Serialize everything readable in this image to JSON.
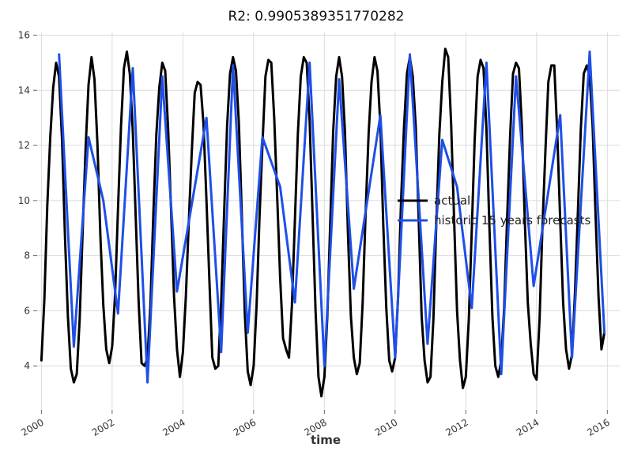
{
  "chart_data": {
    "type": "line",
    "title": "R2: 0.9905389351770282",
    "xlabel": "time",
    "ylabel": "",
    "xlim": [
      1999.88,
      2016.35
    ],
    "ylim": [
      2.4,
      16.1
    ],
    "x_ticks": [
      2000,
      2002,
      2004,
      2006,
      2008,
      2010,
      2012,
      2014,
      2016
    ],
    "x_tick_labels": [
      "2000",
      "2002",
      "2004",
      "2006",
      "2008",
      "2010",
      "2012",
      "2014",
      "2016"
    ],
    "y_ticks": [
      4,
      6,
      8,
      10,
      12,
      14,
      16
    ],
    "y_tick_labels": [
      "4",
      "6",
      "8",
      "10",
      "12",
      "14",
      "16"
    ],
    "grid": true,
    "legend_position": "center-right",
    "series": [
      {
        "name": "actual",
        "color": "#000000",
        "x": [
          2000.0,
          2000.083,
          2000.167,
          2000.25,
          2000.333,
          2000.417,
          2000.5,
          2000.583,
          2000.667,
          2000.75,
          2000.833,
          2000.917,
          2001.0,
          2001.083,
          2001.167,
          2001.25,
          2001.333,
          2001.417,
          2001.5,
          2001.583,
          2001.667,
          2001.75,
          2001.833,
          2001.917,
          2002.0,
          2002.083,
          2002.167,
          2002.25,
          2002.333,
          2002.417,
          2002.5,
          2002.583,
          2002.667,
          2002.75,
          2002.833,
          2002.917,
          2003.0,
          2003.083,
          2003.167,
          2003.25,
          2003.333,
          2003.417,
          2003.5,
          2003.583,
          2003.667,
          2003.75,
          2003.833,
          2003.917,
          2004.0,
          2004.083,
          2004.167,
          2004.25,
          2004.333,
          2004.417,
          2004.5,
          2004.583,
          2004.667,
          2004.75,
          2004.833,
          2004.917,
          2005.0,
          2005.083,
          2005.167,
          2005.25,
          2005.333,
          2005.417,
          2005.5,
          2005.583,
          2005.667,
          2005.75,
          2005.833,
          2005.917,
          2006.0,
          2006.083,
          2006.167,
          2006.25,
          2006.333,
          2006.417,
          2006.5,
          2006.583,
          2006.667,
          2006.75,
          2006.833,
          2006.917,
          2007.0,
          2007.083,
          2007.167,
          2007.25,
          2007.333,
          2007.417,
          2007.5,
          2007.583,
          2007.667,
          2007.75,
          2007.833,
          2007.917,
          2008.0,
          2008.083,
          2008.167,
          2008.25,
          2008.333,
          2008.417,
          2008.5,
          2008.583,
          2008.667,
          2008.75,
          2008.833,
          2008.917,
          2009.0,
          2009.083,
          2009.167,
          2009.25,
          2009.333,
          2009.417,
          2009.5,
          2009.583,
          2009.667,
          2009.75,
          2009.833,
          2009.917,
          2010.0,
          2010.083,
          2010.167,
          2010.25,
          2010.333,
          2010.417,
          2010.5,
          2010.583,
          2010.667,
          2010.75,
          2010.833,
          2010.917,
          2011.0,
          2011.083,
          2011.167,
          2011.25,
          2011.333,
          2011.417,
          2011.5,
          2011.583,
          2011.667,
          2011.75,
          2011.833,
          2011.917,
          2012.0,
          2012.083,
          2012.167,
          2012.25,
          2012.333,
          2012.417,
          2012.5,
          2012.583,
          2012.667,
          2012.75,
          2012.833,
          2012.917,
          2013.0,
          2013.083,
          2013.167,
          2013.25,
          2013.333,
          2013.417,
          2013.5,
          2013.583,
          2013.667,
          2013.75,
          2013.833,
          2013.917,
          2014.0,
          2014.083,
          2014.167,
          2014.25,
          2014.333,
          2014.417,
          2014.5,
          2014.583,
          2014.667,
          2014.75,
          2014.833,
          2014.917,
          2015.0,
          2015.083,
          2015.167,
          2015.25,
          2015.333,
          2015.417,
          2015.5,
          2015.583,
          2015.667,
          2015.75,
          2015.833,
          2015.917
        ],
        "y": [
          4.2,
          6.4,
          9.8,
          12.3,
          14.1,
          15.0,
          14.5,
          12.2,
          8.7,
          5.8,
          3.9,
          3.4,
          3.7,
          5.7,
          8.9,
          11.9,
          14.2,
          15.2,
          14.4,
          12.1,
          8.7,
          6.2,
          4.6,
          4.1,
          4.7,
          6.6,
          9.7,
          12.7,
          14.8,
          15.4,
          14.6,
          12.5,
          9.4,
          6.3,
          4.1,
          4.0,
          4.3,
          6.2,
          9.6,
          12.4,
          14.1,
          15.0,
          14.7,
          12.6,
          9.6,
          6.5,
          4.6,
          3.6,
          4.5,
          6.5,
          9.2,
          11.7,
          13.9,
          14.3,
          14.2,
          12.8,
          10.0,
          7.1,
          4.3,
          3.9,
          4.0,
          6.3,
          9.6,
          12.7,
          14.6,
          15.2,
          14.7,
          12.8,
          9.4,
          5.9,
          3.8,
          3.3,
          4.0,
          6.2,
          9.4,
          12.0,
          14.5,
          15.1,
          15.0,
          13.0,
          10.1,
          7.2,
          5.0,
          4.6,
          4.3,
          6.2,
          9.3,
          12.4,
          14.5,
          15.2,
          15.0,
          12.9,
          9.4,
          6.0,
          3.6,
          2.9,
          3.6,
          5.8,
          9.2,
          12.5,
          14.5,
          15.2,
          14.5,
          12.5,
          8.8,
          5.8,
          4.3,
          3.7,
          4.1,
          6.3,
          9.6,
          12.4,
          14.3,
          15.2,
          14.7,
          12.7,
          9.1,
          6.1,
          4.2,
          3.8,
          4.3,
          6.5,
          9.9,
          12.6,
          14.6,
          15.2,
          14.5,
          12.7,
          9.3,
          5.8,
          4.2,
          3.4,
          3.6,
          5.7,
          9.3,
          12.4,
          14.3,
          15.5,
          15.2,
          12.8,
          9.4,
          6.0,
          4.2,
          3.2,
          3.6,
          5.7,
          8.9,
          12.2,
          14.5,
          15.1,
          14.8,
          12.6,
          9.0,
          5.8,
          4.0,
          3.6,
          4.2,
          6.1,
          9.4,
          12.3,
          14.6,
          15.0,
          14.8,
          12.7,
          9.3,
          6.3,
          4.8,
          3.7,
          3.5,
          5.7,
          9.1,
          11.8,
          14.3,
          14.9,
          14.9,
          12.5,
          9.3,
          6.3,
          4.6,
          3.9,
          4.4,
          6.6,
          9.6,
          12.6,
          14.6,
          14.9,
          14.5,
          12.7,
          9.5,
          6.5,
          4.6,
          5.2
        ]
      },
      {
        "name": "historic 15 years forecasts",
        "color": "#1f4fe8",
        "x": [
          2000.5,
          2000.917,
          2001.333,
          2001.75,
          2002.167,
          2002.583,
          2003.0,
          2003.417,
          2003.833,
          2004.667,
          2005.083,
          2005.417,
          2005.833,
          2006.25,
          2006.75,
          2007.167,
          2007.583,
          2008.0,
          2008.417,
          2008.833,
          2009.583,
          2010.0,
          2010.417,
          2010.917,
          2011.333,
          2011.75,
          2012.167,
          2012.583,
          2013.0,
          2013.417,
          2013.917,
          2014.667,
          2015.0,
          2015.5,
          2015.917
        ],
        "y": [
          15.3,
          4.7,
          12.3,
          10.0,
          5.9,
          14.8,
          3.4,
          14.5,
          6.7,
          13.0,
          4.5,
          14.9,
          5.2,
          12.3,
          10.5,
          6.3,
          15.0,
          4.0,
          14.4,
          6.8,
          13.1,
          4.3,
          15.3,
          4.8,
          12.2,
          10.5,
          6.1,
          15.0,
          3.7,
          14.5,
          6.9,
          13.1,
          4.3,
          15.4,
          5.2
        ]
      }
    ]
  }
}
